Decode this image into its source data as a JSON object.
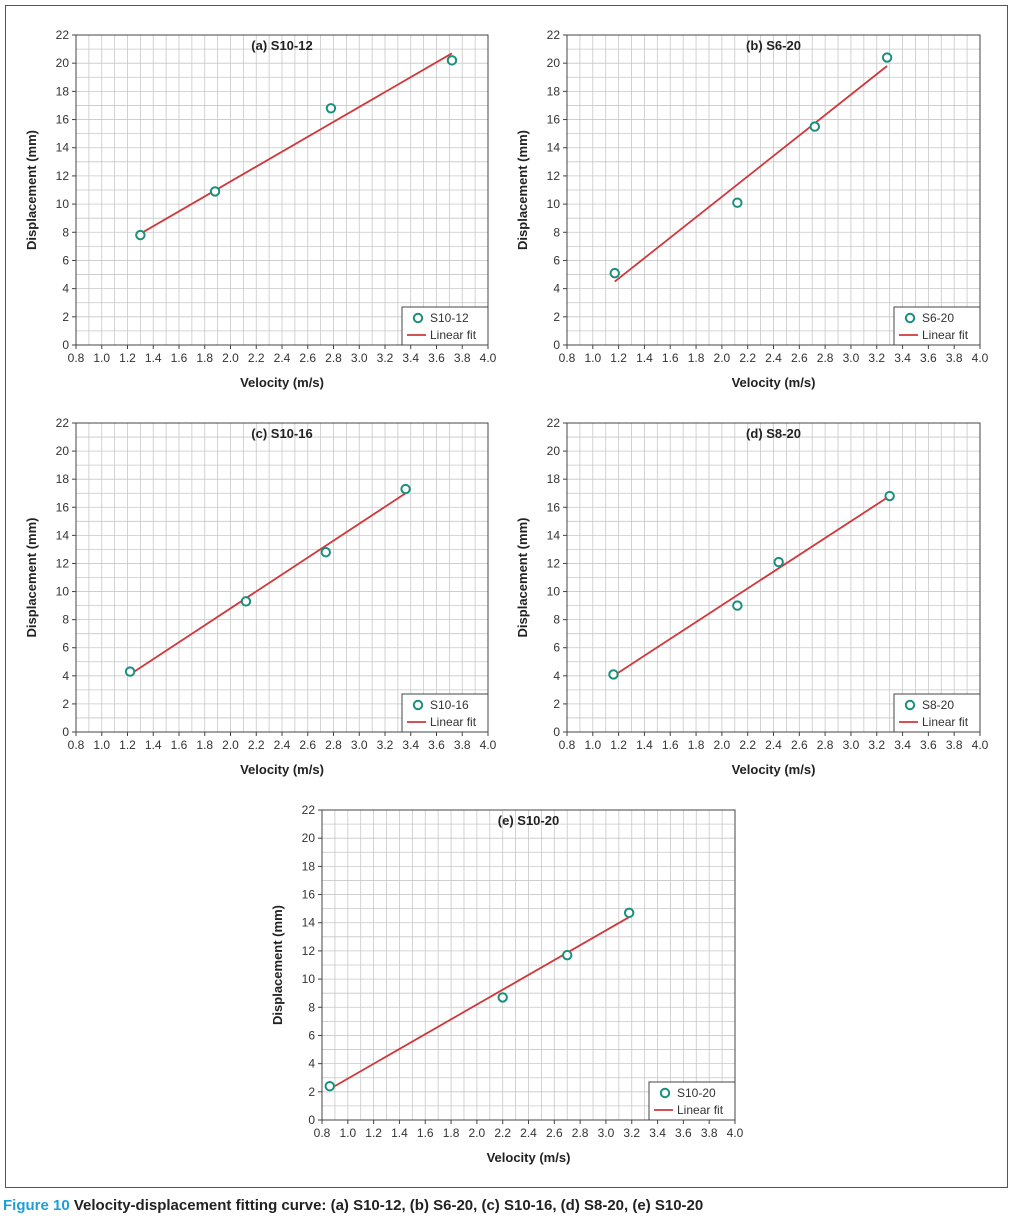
{
  "figure_label": "Figure 10",
  "caption": "Velocity-displacement fitting curve: (a) S10-12, (b) S6-20, (c) S10-16, (d) S8-20, (e) S10-20",
  "colors": {
    "grid": "#c8c8c8",
    "axis": "#444444",
    "fit_line": "#d0383b",
    "marker": "#1a8f7d",
    "caption_accent": "#1f9fd6"
  },
  "chart_data": [
    {
      "type": "scatter",
      "title": "(a) S10-12",
      "xlabel": "Velocity (m/s)",
      "ylabel": "Displacement (mm)",
      "xlim": [
        0.8,
        4.0
      ],
      "ylim": [
        0,
        22
      ],
      "xticks": [
        "0.8",
        "1.0",
        "1.2",
        "1.4",
        "1.6",
        "1.8",
        "2.0",
        "2.2",
        "2.4",
        "2.6",
        "2.8",
        "3.0",
        "3.2",
        "3.4",
        "3.6",
        "3.8",
        "4.0"
      ],
      "yticks": [
        "0",
        "2",
        "4",
        "6",
        "8",
        "10",
        "12",
        "14",
        "16",
        "18",
        "20",
        "22"
      ],
      "grid": true,
      "legend_position": "bottom-right",
      "series": [
        {
          "name": "S10-12",
          "kind": "points",
          "x": [
            1.3,
            1.88,
            2.78,
            3.72
          ],
          "y": [
            7.8,
            10.9,
            16.8,
            20.2
          ]
        },
        {
          "name": "Linear fit",
          "kind": "line",
          "x": [
            1.3,
            3.72
          ],
          "y": [
            7.9,
            20.7
          ]
        }
      ]
    },
    {
      "type": "scatter",
      "title": "(b) S6-20",
      "xlabel": "Velocity (m/s)",
      "ylabel": "Displacement (mm)",
      "xlim": [
        0.8,
        4.0
      ],
      "ylim": [
        0,
        22
      ],
      "xticks": [
        "0.8",
        "1.0",
        "1.2",
        "1.4",
        "1.6",
        "1.8",
        "2.0",
        "2.2",
        "2.4",
        "2.6",
        "2.8",
        "3.0",
        "3.2",
        "3.4",
        "3.6",
        "3.8",
        "4.0"
      ],
      "yticks": [
        "0",
        "2",
        "4",
        "6",
        "8",
        "10",
        "12",
        "14",
        "16",
        "18",
        "20",
        "22"
      ],
      "grid": true,
      "legend_position": "bottom-right",
      "series": [
        {
          "name": "S6-20",
          "kind": "points",
          "x": [
            1.17,
            2.12,
            2.72,
            3.28
          ],
          "y": [
            5.1,
            10.1,
            15.5,
            20.4
          ]
        },
        {
          "name": "Linear fit",
          "kind": "line",
          "x": [
            1.17,
            3.28
          ],
          "y": [
            4.5,
            19.8
          ]
        }
      ]
    },
    {
      "type": "scatter",
      "title": "(c) S10-16",
      "xlabel": "Velocity (m/s)",
      "ylabel": "Displacement (mm)",
      "xlim": [
        0.8,
        4.0
      ],
      "ylim": [
        0,
        22
      ],
      "xticks": [
        "0.8",
        "1.0",
        "1.2",
        "1.4",
        "1.6",
        "1.8",
        "2.0",
        "2.2",
        "2.4",
        "2.6",
        "2.8",
        "3.0",
        "3.2",
        "3.4",
        "3.6",
        "3.8",
        "4.0"
      ],
      "yticks": [
        "0",
        "2",
        "4",
        "6",
        "8",
        "10",
        "12",
        "14",
        "16",
        "18",
        "20",
        "22"
      ],
      "grid": true,
      "legend_position": "bottom-right",
      "series": [
        {
          "name": "S10-16",
          "kind": "points",
          "x": [
            1.22,
            2.12,
            2.74,
            3.36
          ],
          "y": [
            4.3,
            9.3,
            12.8,
            17.3
          ]
        },
        {
          "name": "Linear fit",
          "kind": "line",
          "x": [
            1.22,
            3.36
          ],
          "y": [
            4.1,
            17.0
          ]
        }
      ]
    },
    {
      "type": "scatter",
      "title": "(d) S8-20",
      "xlabel": "Velocity (m/s)",
      "ylabel": "Displacement (mm)",
      "xlim": [
        0.8,
        4.0
      ],
      "ylim": [
        0,
        22
      ],
      "xticks": [
        "0.8",
        "1.0",
        "1.2",
        "1.4",
        "1.6",
        "1.8",
        "2.0",
        "2.2",
        "2.4",
        "2.6",
        "2.8",
        "3.0",
        "3.2",
        "3.4",
        "3.6",
        "3.8",
        "4.0"
      ],
      "yticks": [
        "0",
        "2",
        "4",
        "6",
        "8",
        "10",
        "12",
        "14",
        "16",
        "18",
        "20",
        "22"
      ],
      "grid": true,
      "legend_position": "bottom-right",
      "series": [
        {
          "name": "S8-20",
          "kind": "points",
          "x": [
            1.16,
            2.12,
            2.44,
            3.3
          ],
          "y": [
            4.1,
            9.0,
            12.1,
            16.8
          ]
        },
        {
          "name": "Linear fit",
          "kind": "line",
          "x": [
            1.16,
            3.3
          ],
          "y": [
            4.0,
            16.8
          ]
        }
      ]
    },
    {
      "type": "scatter",
      "title": "(e) S10-20",
      "xlabel": "Velocity (m/s)",
      "ylabel": "Displacement (mm)",
      "xlim": [
        0.8,
        4.0
      ],
      "ylim": [
        0,
        22
      ],
      "xticks": [
        "0.8",
        "1.0",
        "1.2",
        "1.4",
        "1.6",
        "1.8",
        "2.0",
        "2.2",
        "2.4",
        "2.6",
        "2.8",
        "3.0",
        "3.2",
        "3.4",
        "3.6",
        "3.8",
        "4.0"
      ],
      "yticks": [
        "0",
        "2",
        "4",
        "6",
        "8",
        "10",
        "12",
        "14",
        "16",
        "18",
        "20",
        "22"
      ],
      "grid": true,
      "legend_position": "bottom-right",
      "series": [
        {
          "name": "S10-20",
          "kind": "points",
          "x": [
            0.86,
            2.2,
            2.7,
            3.18
          ],
          "y": [
            2.4,
            8.7,
            11.7,
            14.7
          ]
        },
        {
          "name": "Linear fit",
          "kind": "line",
          "x": [
            0.86,
            3.18
          ],
          "y": [
            2.2,
            14.4
          ]
        }
      ]
    }
  ]
}
